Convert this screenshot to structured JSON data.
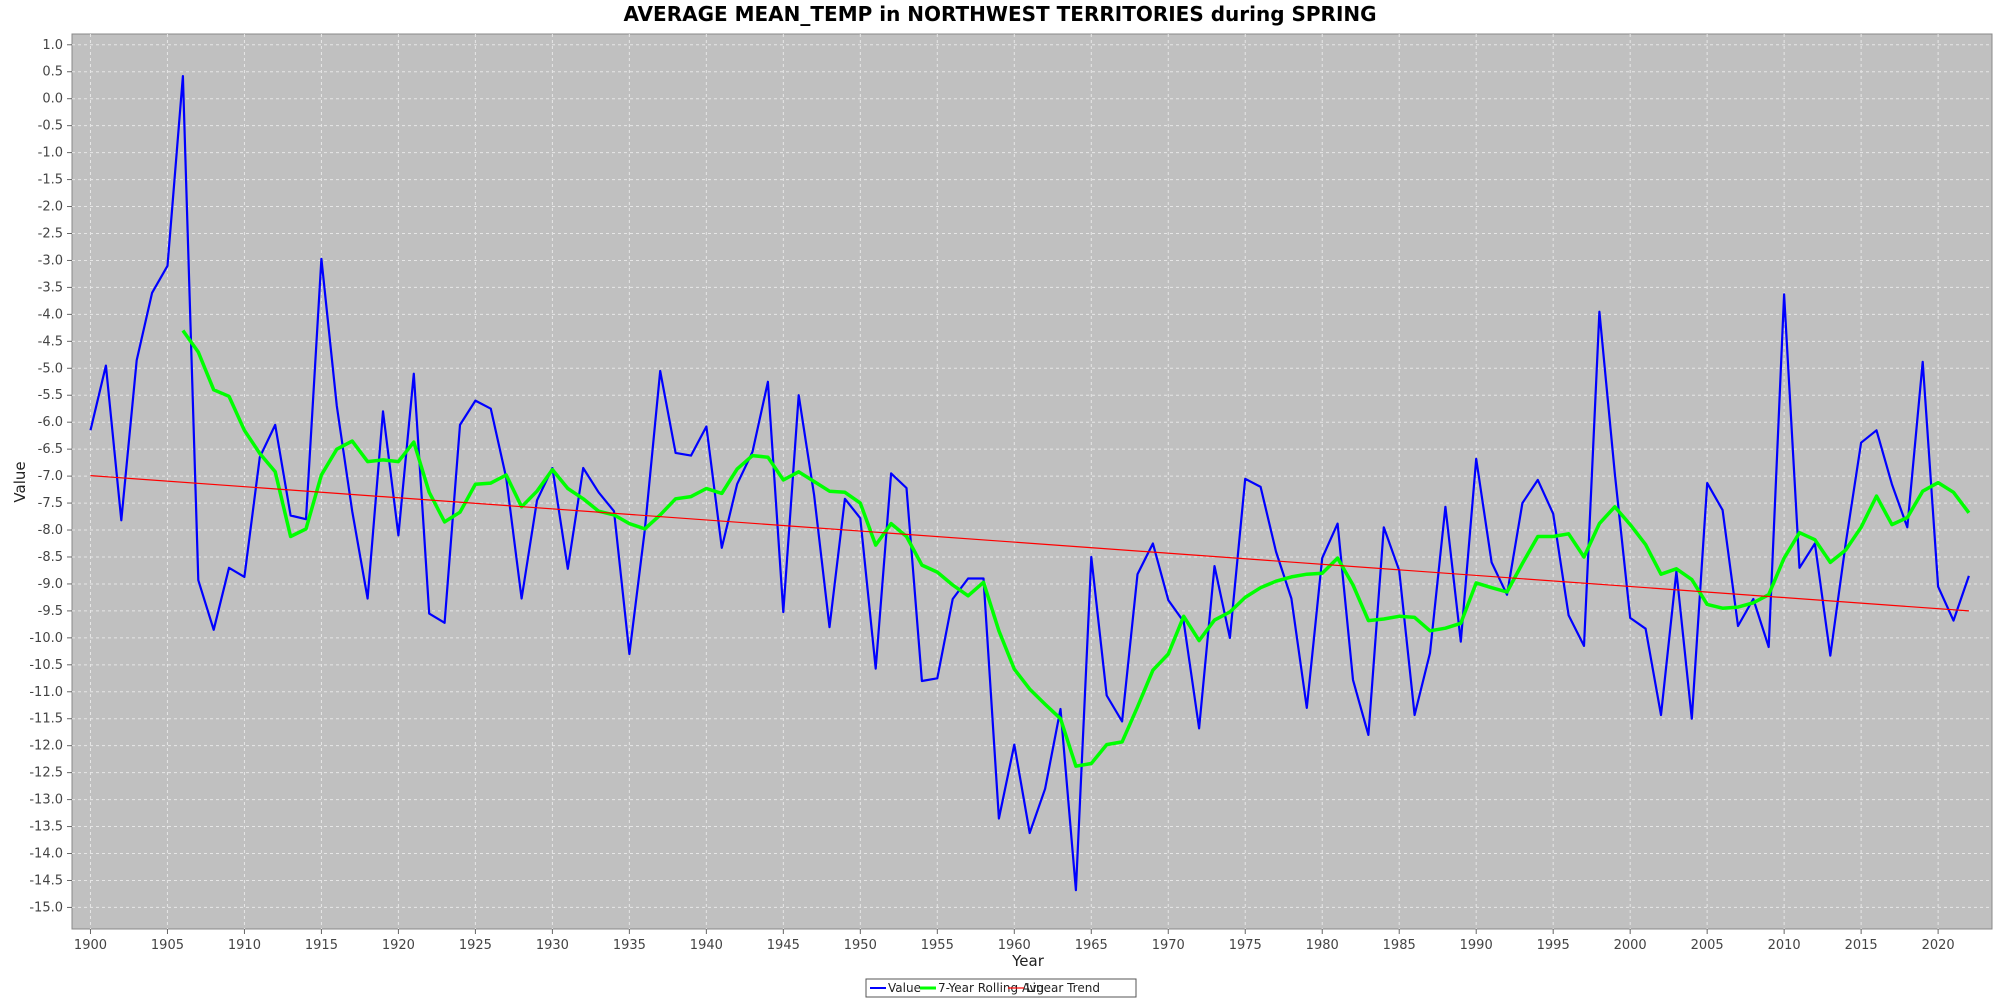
{
  "chart_data": {
    "type": "line",
    "title": "AVERAGE MEAN_TEMP in NORTHWEST TERRITORIES during SPRING",
    "xlabel": "Year",
    "ylabel": "Value",
    "xlim": [
      1898.8,
      2023.5
    ],
    "ylim": [
      -15.4,
      1.2
    ],
    "x_ticks": [
      1900,
      1905,
      1910,
      1915,
      1920,
      1925,
      1930,
      1935,
      1940,
      1945,
      1950,
      1955,
      1960,
      1965,
      1970,
      1975,
      1980,
      1985,
      1990,
      1995,
      2000,
      2005,
      2010,
      2015,
      2020
    ],
    "y_ticks": [
      1.0,
      0.5,
      0.0,
      -0.5,
      -1.0,
      -1.5,
      -2.0,
      -2.5,
      -3.0,
      -3.5,
      -4.0,
      -4.5,
      -5.0,
      -5.5,
      -6.0,
      -6.5,
      -7.0,
      -7.5,
      -8.0,
      -8.5,
      -9.0,
      -9.5,
      -10.0,
      -10.5,
      -11.0,
      -11.5,
      -12.0,
      -12.5,
      -13.0,
      -13.5,
      -14.0,
      -14.5,
      -15.0
    ],
    "grid": true,
    "legend_position": "bottom-center",
    "background": "#c0c0c0",
    "series": [
      {
        "name": "Value",
        "color": "#0000ff",
        "x": [
          1900,
          1901,
          1902,
          1903,
          1904,
          1905,
          1906,
          1907,
          1908,
          1909,
          1910,
          1911,
          1912,
          1913,
          1914,
          1915,
          1916,
          1917,
          1918,
          1919,
          1920,
          1921,
          1922,
          1923,
          1924,
          1925,
          1926,
          1927,
          1928,
          1929,
          1930,
          1931,
          1932,
          1933,
          1934,
          1935,
          1936,
          1937,
          1938,
          1939,
          1940,
          1941,
          1942,
          1943,
          1944,
          1945,
          1946,
          1947,
          1948,
          1949,
          1950,
          1951,
          1952,
          1953,
          1954,
          1955,
          1956,
          1957,
          1958,
          1959,
          1960,
          1961,
          1962,
          1963,
          1964,
          1965,
          1966,
          1967,
          1968,
          1969,
          1970,
          1971,
          1972,
          1973,
          1974,
          1975,
          1976,
          1977,
          1978,
          1979,
          1980,
          1981,
          1982,
          1983,
          1984,
          1985,
          1986,
          1987,
          1988,
          1989,
          1990,
          1991,
          1992,
          1993,
          1994,
          1995,
          1996,
          1997,
          1998,
          1999,
          2000,
          2001,
          2002,
          2003,
          2004,
          2005,
          2006,
          2007,
          2008,
          2009,
          2010,
          2011,
          2012,
          2013,
          2014,
          2015,
          2016,
          2017,
          2018,
          2019,
          2020,
          2021,
          2022
        ],
        "y": [
          -6.15,
          -4.95,
          -7.82,
          -4.85,
          -3.6,
          -3.1,
          0.42,
          -8.93,
          -9.85,
          -8.7,
          -8.87,
          -6.65,
          -6.05,
          -7.73,
          -7.8,
          -2.97,
          -5.7,
          -7.65,
          -9.27,
          -5.8,
          -8.1,
          -5.1,
          -9.55,
          -9.72,
          -6.05,
          -5.6,
          -5.75,
          -7.03,
          -9.27,
          -7.45,
          -6.85,
          -8.72,
          -6.85,
          -7.3,
          -7.65,
          -10.3,
          -8.0,
          -5.05,
          -6.57,
          -6.62,
          -6.08,
          -8.33,
          -7.15,
          -6.55,
          -5.25,
          -9.52,
          -5.5,
          -7.35,
          -9.8,
          -7.42,
          -7.78,
          -10.57,
          -6.95,
          -7.22,
          -10.8,
          -10.75,
          -9.28,
          -8.9,
          -8.9,
          -13.35,
          -11.98,
          -13.62,
          -12.8,
          -11.32,
          -14.68,
          -8.5,
          -11.07,
          -11.55,
          -8.82,
          -8.25,
          -9.3,
          -9.7,
          -11.68,
          -8.67,
          -10.0,
          -7.05,
          -7.2,
          -8.4,
          -9.27,
          -11.3,
          -8.52,
          -7.88,
          -10.78,
          -11.8,
          -7.95,
          -8.75,
          -11.43,
          -10.28,
          -7.57,
          -10.07,
          -6.68,
          -8.6,
          -9.2,
          -7.5,
          -7.07,
          -7.7,
          -9.58,
          -10.15,
          -3.95,
          -6.95,
          -9.63,
          -9.83,
          -11.43,
          -8.77,
          -11.5,
          -7.13,
          -7.63,
          -9.78,
          -9.28,
          -10.17,
          -3.63,
          -8.7,
          -8.25,
          -10.33,
          -8.25,
          -6.38,
          -6.15,
          -7.15,
          -7.95,
          -4.88,
          -9.05,
          -9.68,
          -8.85
        ]
      },
      {
        "name": "7-Year Rolling Avg",
        "color": "#00ff00",
        "x": [
          1906,
          1907,
          1908,
          1909,
          1910,
          1911,
          1912,
          1913,
          1914,
          1915,
          1916,
          1917,
          1918,
          1919,
          1920,
          1921,
          1922,
          1923,
          1924,
          1925,
          1926,
          1927,
          1928,
          1929,
          1930,
          1931,
          1932,
          1933,
          1934,
          1935,
          1936,
          1937,
          1938,
          1939,
          1940,
          1941,
          1942,
          1943,
          1944,
          1945,
          1946,
          1947,
          1948,
          1949,
          1950,
          1951,
          1952,
          1953,
          1954,
          1955,
          1956,
          1957,
          1958,
          1959,
          1960,
          1961,
          1962,
          1963,
          1964,
          1965,
          1966,
          1967,
          1968,
          1969,
          1970,
          1971,
          1972,
          1973,
          1974,
          1975,
          1976,
          1977,
          1978,
          1979,
          1980,
          1981,
          1982,
          1983,
          1984,
          1985,
          1986,
          1987,
          1988,
          1989,
          1990,
          1991,
          1992,
          1993,
          1994,
          1995,
          1996,
          1997,
          1998,
          1999,
          2000,
          2001,
          2002,
          2003,
          2004,
          2005,
          2006,
          2007,
          2008,
          2009,
          2010,
          2011,
          2012,
          2013,
          2014,
          2015,
          2016,
          2017,
          2018,
          2019,
          2020,
          2021,
          2022
        ],
        "y": [
          -4.3,
          -4.7,
          -5.4,
          -5.52,
          -6.15,
          -6.58,
          -6.92,
          -8.12,
          -7.98,
          -6.98,
          -6.5,
          -6.35,
          -6.73,
          -6.7,
          -6.73,
          -6.37,
          -7.3,
          -7.85,
          -7.67,
          -7.15,
          -7.13,
          -6.98,
          -7.57,
          -7.28,
          -6.88,
          -7.23,
          -7.42,
          -7.65,
          -7.72,
          -7.88,
          -7.98,
          -7.72,
          -7.42,
          -7.38,
          -7.23,
          -7.32,
          -6.87,
          -6.62,
          -6.65,
          -7.07,
          -6.92,
          -7.1,
          -7.28,
          -7.3,
          -7.5,
          -8.28,
          -7.88,
          -8.12,
          -8.65,
          -8.78,
          -9.02,
          -9.22,
          -8.97,
          -9.87,
          -10.58,
          -10.95,
          -11.23,
          -11.5,
          -12.38,
          -12.33,
          -11.98,
          -11.93,
          -11.28,
          -10.6,
          -10.3,
          -9.6,
          -10.05,
          -9.67,
          -9.52,
          -9.25,
          -9.07,
          -8.95,
          -8.87,
          -8.82,
          -8.8,
          -8.52,
          -9.02,
          -9.68,
          -9.65,
          -9.6,
          -9.62,
          -9.87,
          -9.82,
          -9.73,
          -8.98,
          -9.07,
          -9.15,
          -8.62,
          -8.12,
          -8.12,
          -8.07,
          -8.5,
          -7.88,
          -7.57,
          -7.9,
          -8.27,
          -8.82,
          -8.72,
          -8.92,
          -9.38,
          -9.45,
          -9.43,
          -9.35,
          -9.2,
          -8.52,
          -8.05,
          -8.18,
          -8.6,
          -8.37,
          -7.95,
          -7.37,
          -7.9,
          -7.77,
          -7.28,
          -7.12,
          -7.3,
          -7.68
        ]
      },
      {
        "name": "Linear Trend",
        "color": "#ff0000",
        "x": [
          1900,
          2022
        ],
        "y": [
          -6.99,
          -9.5
        ]
      }
    ]
  }
}
